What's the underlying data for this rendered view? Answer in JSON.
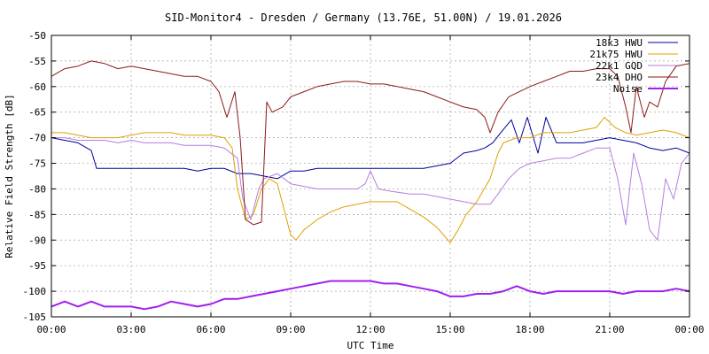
{
  "chart_data": {
    "type": "line",
    "title": "SID-Monitor4 - Dresden / Germany (13.76E, 51.00N) / 19.01.2026",
    "xlabel": "UTC Time",
    "ylabel": "Relative Field Strength [dB]",
    "xlim": [
      0,
      24
    ],
    "ylim": [
      -105,
      -50
    ],
    "grid": true,
    "legend_position": "top-right",
    "x_ticks": [
      {
        "value": 0,
        "label": "00:00"
      },
      {
        "value": 3,
        "label": "03:00"
      },
      {
        "value": 6,
        "label": "06:00"
      },
      {
        "value": 9,
        "label": "09:00"
      },
      {
        "value": 12,
        "label": "12:00"
      },
      {
        "value": 15,
        "label": "15:00"
      },
      {
        "value": 18,
        "label": "18:00"
      },
      {
        "value": 21,
        "label": "21:00"
      },
      {
        "value": 24,
        "label": "00:00"
      }
    ],
    "y_ticks": [
      {
        "value": -50,
        "label": "-50"
      },
      {
        "value": -55,
        "label": "-55"
      },
      {
        "value": -60,
        "label": "-60"
      },
      {
        "value": -65,
        "label": "-65"
      },
      {
        "value": -70,
        "label": "-70"
      },
      {
        "value": -75,
        "label": "-75"
      },
      {
        "value": -80,
        "label": "-80"
      },
      {
        "value": -85,
        "label": "-85"
      },
      {
        "value": -90,
        "label": "-90"
      },
      {
        "value": -95,
        "label": "-95"
      },
      {
        "value": -100,
        "label": "-100"
      },
      {
        "value": -105,
        "label": "-105"
      }
    ],
    "series": [
      {
        "name": "18k3 HWU",
        "color": "#00009c",
        "points": [
          [
            0,
            -70
          ],
          [
            0.5,
            -70.5
          ],
          [
            1,
            -71
          ],
          [
            1.5,
            -72.5
          ],
          [
            1.7,
            -76
          ],
          [
            2,
            -76
          ],
          [
            2.5,
            -76
          ],
          [
            3,
            -76
          ],
          [
            3.5,
            -76
          ],
          [
            4,
            -76
          ],
          [
            4.5,
            -76
          ],
          [
            5,
            -76
          ],
          [
            5.5,
            -76.5
          ],
          [
            6,
            -76
          ],
          [
            6.5,
            -76
          ],
          [
            7,
            -77
          ],
          [
            7.5,
            -77
          ],
          [
            8,
            -77.5
          ],
          [
            8.5,
            -78
          ],
          [
            9,
            -76.5
          ],
          [
            9.5,
            -76.5
          ],
          [
            10,
            -76
          ],
          [
            10.5,
            -76
          ],
          [
            11,
            -76
          ],
          [
            11.5,
            -76
          ],
          [
            12,
            -76
          ],
          [
            12.5,
            -76
          ],
          [
            13,
            -76
          ],
          [
            13.5,
            -76
          ],
          [
            14,
            -76
          ],
          [
            14.5,
            -75.5
          ],
          [
            15,
            -75
          ],
          [
            15.5,
            -73
          ],
          [
            16,
            -72.5
          ],
          [
            16.3,
            -72
          ],
          [
            16.6,
            -71
          ],
          [
            16.9,
            -69
          ],
          [
            17.3,
            -66.5
          ],
          [
            17.6,
            -71
          ],
          [
            17.9,
            -66
          ],
          [
            18.3,
            -73
          ],
          [
            18.6,
            -66
          ],
          [
            19,
            -71
          ],
          [
            19.5,
            -71
          ],
          [
            20,
            -71
          ],
          [
            20.5,
            -70.5
          ],
          [
            21,
            -70
          ],
          [
            21.5,
            -70.5
          ],
          [
            22,
            -71
          ],
          [
            22.5,
            -72
          ],
          [
            23,
            -72.5
          ],
          [
            23.5,
            -72
          ],
          [
            24,
            -73
          ]
        ]
      },
      {
        "name": "21k75 HWU",
        "color": "#e0a000",
        "points": [
          [
            0,
            -69
          ],
          [
            0.5,
            -69
          ],
          [
            1,
            -69.5
          ],
          [
            1.5,
            -70
          ],
          [
            2,
            -70
          ],
          [
            2.5,
            -70
          ],
          [
            3,
            -69.5
          ],
          [
            3.5,
            -69
          ],
          [
            4,
            -69
          ],
          [
            4.5,
            -69
          ],
          [
            5,
            -69.5
          ],
          [
            5.5,
            -69.5
          ],
          [
            6,
            -69.5
          ],
          [
            6.5,
            -70
          ],
          [
            6.8,
            -72
          ],
          [
            7,
            -80
          ],
          [
            7.3,
            -86
          ],
          [
            7.6,
            -85
          ],
          [
            7.9,
            -80
          ],
          [
            8.2,
            -78
          ],
          [
            8.5,
            -79
          ],
          [
            9,
            -89
          ],
          [
            9.2,
            -90
          ],
          [
            9.5,
            -88
          ],
          [
            10,
            -86
          ],
          [
            10.5,
            -84.5
          ],
          [
            11,
            -83.5
          ],
          [
            11.5,
            -83
          ],
          [
            12,
            -82.5
          ],
          [
            12.5,
            -82.5
          ],
          [
            13,
            -82.5
          ],
          [
            13.5,
            -84
          ],
          [
            14,
            -85.5
          ],
          [
            14.5,
            -87.5
          ],
          [
            15,
            -90.5
          ],
          [
            15.3,
            -88
          ],
          [
            15.6,
            -85
          ],
          [
            16,
            -82.5
          ],
          [
            16.5,
            -78
          ],
          [
            16.8,
            -73
          ],
          [
            17,
            -71
          ],
          [
            17.5,
            -70
          ],
          [
            18,
            -70
          ],
          [
            18.5,
            -69
          ],
          [
            19,
            -69
          ],
          [
            19.5,
            -69
          ],
          [
            20,
            -68.5
          ],
          [
            20.5,
            -68
          ],
          [
            20.8,
            -66
          ],
          [
            21.2,
            -68
          ],
          [
            21.6,
            -69
          ],
          [
            22,
            -69.5
          ],
          [
            22.5,
            -69
          ],
          [
            23,
            -68.5
          ],
          [
            23.5,
            -69
          ],
          [
            24,
            -70
          ]
        ]
      },
      {
        "name": "22k1 GQD",
        "color": "#b47ee0",
        "points": [
          [
            0,
            -70
          ],
          [
            0.5,
            -70
          ],
          [
            1,
            -70.5
          ],
          [
            1.5,
            -70.5
          ],
          [
            2,
            -70.5
          ],
          [
            2.5,
            -71
          ],
          [
            3,
            -70.5
          ],
          [
            3.5,
            -71
          ],
          [
            4,
            -71
          ],
          [
            4.5,
            -71
          ],
          [
            5,
            -71.5
          ],
          [
            5.5,
            -71.5
          ],
          [
            6,
            -71.5
          ],
          [
            6.5,
            -72
          ],
          [
            7,
            -74
          ],
          [
            7.2,
            -82
          ],
          [
            7.5,
            -86
          ],
          [
            7.8,
            -80
          ],
          [
            8,
            -78
          ],
          [
            8.5,
            -77
          ],
          [
            9,
            -79
          ],
          [
            9.5,
            -79.5
          ],
          [
            10,
            -80
          ],
          [
            10.5,
            -80
          ],
          [
            11,
            -80
          ],
          [
            11.5,
            -80
          ],
          [
            11.8,
            -79
          ],
          [
            12,
            -76.5
          ],
          [
            12.3,
            -80
          ],
          [
            12.8,
            -80.5
          ],
          [
            13.5,
            -81
          ],
          [
            14,
            -81
          ],
          [
            14.5,
            -81.5
          ],
          [
            15,
            -82
          ],
          [
            15.5,
            -82.5
          ],
          [
            16,
            -83
          ],
          [
            16.5,
            -83
          ],
          [
            16.8,
            -81
          ],
          [
            17.2,
            -78
          ],
          [
            17.6,
            -76
          ],
          [
            18,
            -75
          ],
          [
            18.5,
            -74.5
          ],
          [
            19,
            -74
          ],
          [
            19.5,
            -74
          ],
          [
            20,
            -73
          ],
          [
            20.5,
            -72
          ],
          [
            21,
            -72
          ],
          [
            21.3,
            -78
          ],
          [
            21.6,
            -87
          ],
          [
            21.9,
            -73
          ],
          [
            22.2,
            -79
          ],
          [
            22.5,
            -88
          ],
          [
            22.8,
            -90
          ],
          [
            23.1,
            -78
          ],
          [
            23.4,
            -82
          ],
          [
            23.7,
            -75
          ],
          [
            24,
            -73
          ]
        ]
      },
      {
        "name": "23k4 DHO",
        "color": "#8b1a1a",
        "points": [
          [
            0,
            -58
          ],
          [
            0.5,
            -56.5
          ],
          [
            1,
            -56
          ],
          [
            1.5,
            -55
          ],
          [
            2,
            -55.5
          ],
          [
            2.5,
            -56.5
          ],
          [
            3,
            -56
          ],
          [
            3.5,
            -56.5
          ],
          [
            4,
            -57
          ],
          [
            4.5,
            -57.5
          ],
          [
            5,
            -58
          ],
          [
            5.5,
            -58
          ],
          [
            6,
            -59
          ],
          [
            6.3,
            -61
          ],
          [
            6.6,
            -66
          ],
          [
            6.9,
            -61
          ],
          [
            7.1,
            -70
          ],
          [
            7.3,
            -86
          ],
          [
            7.6,
            -87
          ],
          [
            7.9,
            -86.5
          ],
          [
            8.1,
            -63
          ],
          [
            8.3,
            -65
          ],
          [
            8.7,
            -64
          ],
          [
            9,
            -62
          ],
          [
            9.5,
            -61
          ],
          [
            10,
            -60
          ],
          [
            10.5,
            -59.5
          ],
          [
            11,
            -59
          ],
          [
            11.5,
            -59
          ],
          [
            12,
            -59.5
          ],
          [
            12.5,
            -59.5
          ],
          [
            13,
            -60
          ],
          [
            13.5,
            -60.5
          ],
          [
            14,
            -61
          ],
          [
            14.5,
            -62
          ],
          [
            15,
            -63
          ],
          [
            15.5,
            -64
          ],
          [
            16,
            -64.5
          ],
          [
            16.3,
            -66
          ],
          [
            16.5,
            -69
          ],
          [
            16.8,
            -65
          ],
          [
            17.2,
            -62
          ],
          [
            17.6,
            -61
          ],
          [
            18,
            -60
          ],
          [
            18.5,
            -59
          ],
          [
            19,
            -58
          ],
          [
            19.5,
            -57
          ],
          [
            20,
            -57
          ],
          [
            20.5,
            -56.5
          ],
          [
            21,
            -56.5
          ],
          [
            21.3,
            -58
          ],
          [
            21.6,
            -64
          ],
          [
            21.8,
            -69
          ],
          [
            22,
            -60
          ],
          [
            22.3,
            -66
          ],
          [
            22.5,
            -63
          ],
          [
            22.8,
            -64
          ],
          [
            23.1,
            -59
          ],
          [
            23.5,
            -56
          ],
          [
            24,
            -55.5
          ]
        ]
      },
      {
        "name": "Noise",
        "color": "#a020f0",
        "points": [
          [
            0,
            -103
          ],
          [
            0.5,
            -102
          ],
          [
            1,
            -103
          ],
          [
            1.5,
            -102
          ],
          [
            2,
            -103
          ],
          [
            2.5,
            -103
          ],
          [
            3,
            -103
          ],
          [
            3.5,
            -103.5
          ],
          [
            4,
            -103
          ],
          [
            4.5,
            -102
          ],
          [
            5,
            -102.5
          ],
          [
            5.5,
            -103
          ],
          [
            6,
            -102.5
          ],
          [
            6.5,
            -101.5
          ],
          [
            7,
            -101.5
          ],
          [
            7.5,
            -101
          ],
          [
            8,
            -100.5
          ],
          [
            8.5,
            -100
          ],
          [
            9,
            -99.5
          ],
          [
            9.5,
            -99
          ],
          [
            10,
            -98.5
          ],
          [
            10.5,
            -98
          ],
          [
            11,
            -98
          ],
          [
            11.5,
            -98
          ],
          [
            12,
            -98
          ],
          [
            12.5,
            -98.5
          ],
          [
            13,
            -98.5
          ],
          [
            13.5,
            -99
          ],
          [
            14,
            -99.5
          ],
          [
            14.5,
            -100
          ],
          [
            15,
            -101
          ],
          [
            15.5,
            -101
          ],
          [
            16,
            -100.5
          ],
          [
            16.5,
            -100.5
          ],
          [
            17,
            -100
          ],
          [
            17.5,
            -99
          ],
          [
            18,
            -100
          ],
          [
            18.5,
            -100.5
          ],
          [
            19,
            -100
          ],
          [
            19.5,
            -100
          ],
          [
            20,
            -100
          ],
          [
            20.5,
            -100
          ],
          [
            21,
            -100
          ],
          [
            21.5,
            -100.5
          ],
          [
            22,
            -100
          ],
          [
            22.5,
            -100
          ],
          [
            23,
            -100
          ],
          [
            23.5,
            -99.5
          ],
          [
            24,
            -100
          ]
        ]
      }
    ]
  }
}
